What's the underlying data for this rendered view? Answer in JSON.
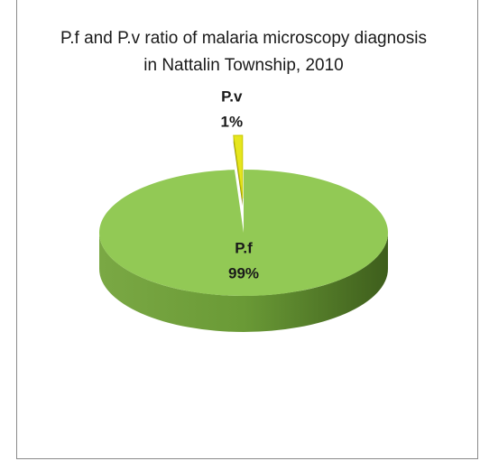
{
  "chart_data": {
    "type": "pie",
    "title": "P.f and P.v ratio of malaria microscopy diagnosis in Nattalin Township, 2010",
    "categories": [
      "P.f",
      "P.v"
    ],
    "values": [
      99,
      1
    ],
    "value_labels": [
      "99%",
      "1%"
    ],
    "colors": [
      "#92c955",
      "#e6e61e"
    ]
  }
}
